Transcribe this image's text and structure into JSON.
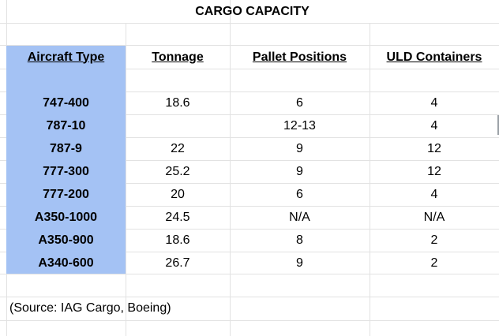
{
  "title": "CARGO CAPACITY",
  "headers": {
    "aircraft_type": "Aircraft Type",
    "tonnage": "Tonnage",
    "pallet_positions": "Pallet Positions",
    "uld_containers": "ULD Containers"
  },
  "rows": [
    {
      "aircraft": "747-400",
      "tonnage": "18.6",
      "pallets": "6",
      "uld": "4"
    },
    {
      "aircraft": "787-10",
      "tonnage": "",
      "pallets": "12-13",
      "uld": "4"
    },
    {
      "aircraft": "787-9",
      "tonnage": "22",
      "pallets": "9",
      "uld": "12"
    },
    {
      "aircraft": "777-300",
      "tonnage": "25.2",
      "pallets": "9",
      "uld": "12"
    },
    {
      "aircraft": "777-200",
      "tonnage": "20",
      "pallets": "6",
      "uld": "4"
    },
    {
      "aircraft": "A350-1000",
      "tonnage": "24.5",
      "pallets": "N/A",
      "uld": "N/A"
    },
    {
      "aircraft": "A350-900",
      "tonnage": "18.6",
      "pallets": "8",
      "uld": "2"
    },
    {
      "aircraft": "A340-600",
      "tonnage": "26.7",
      "pallets": "9",
      "uld": "2"
    }
  ],
  "source": "(Source: IAG Cargo, Boeing)",
  "colors": {
    "aircraft_column_fill": "#a4c2f4",
    "gridline": "#e2e2e2"
  }
}
